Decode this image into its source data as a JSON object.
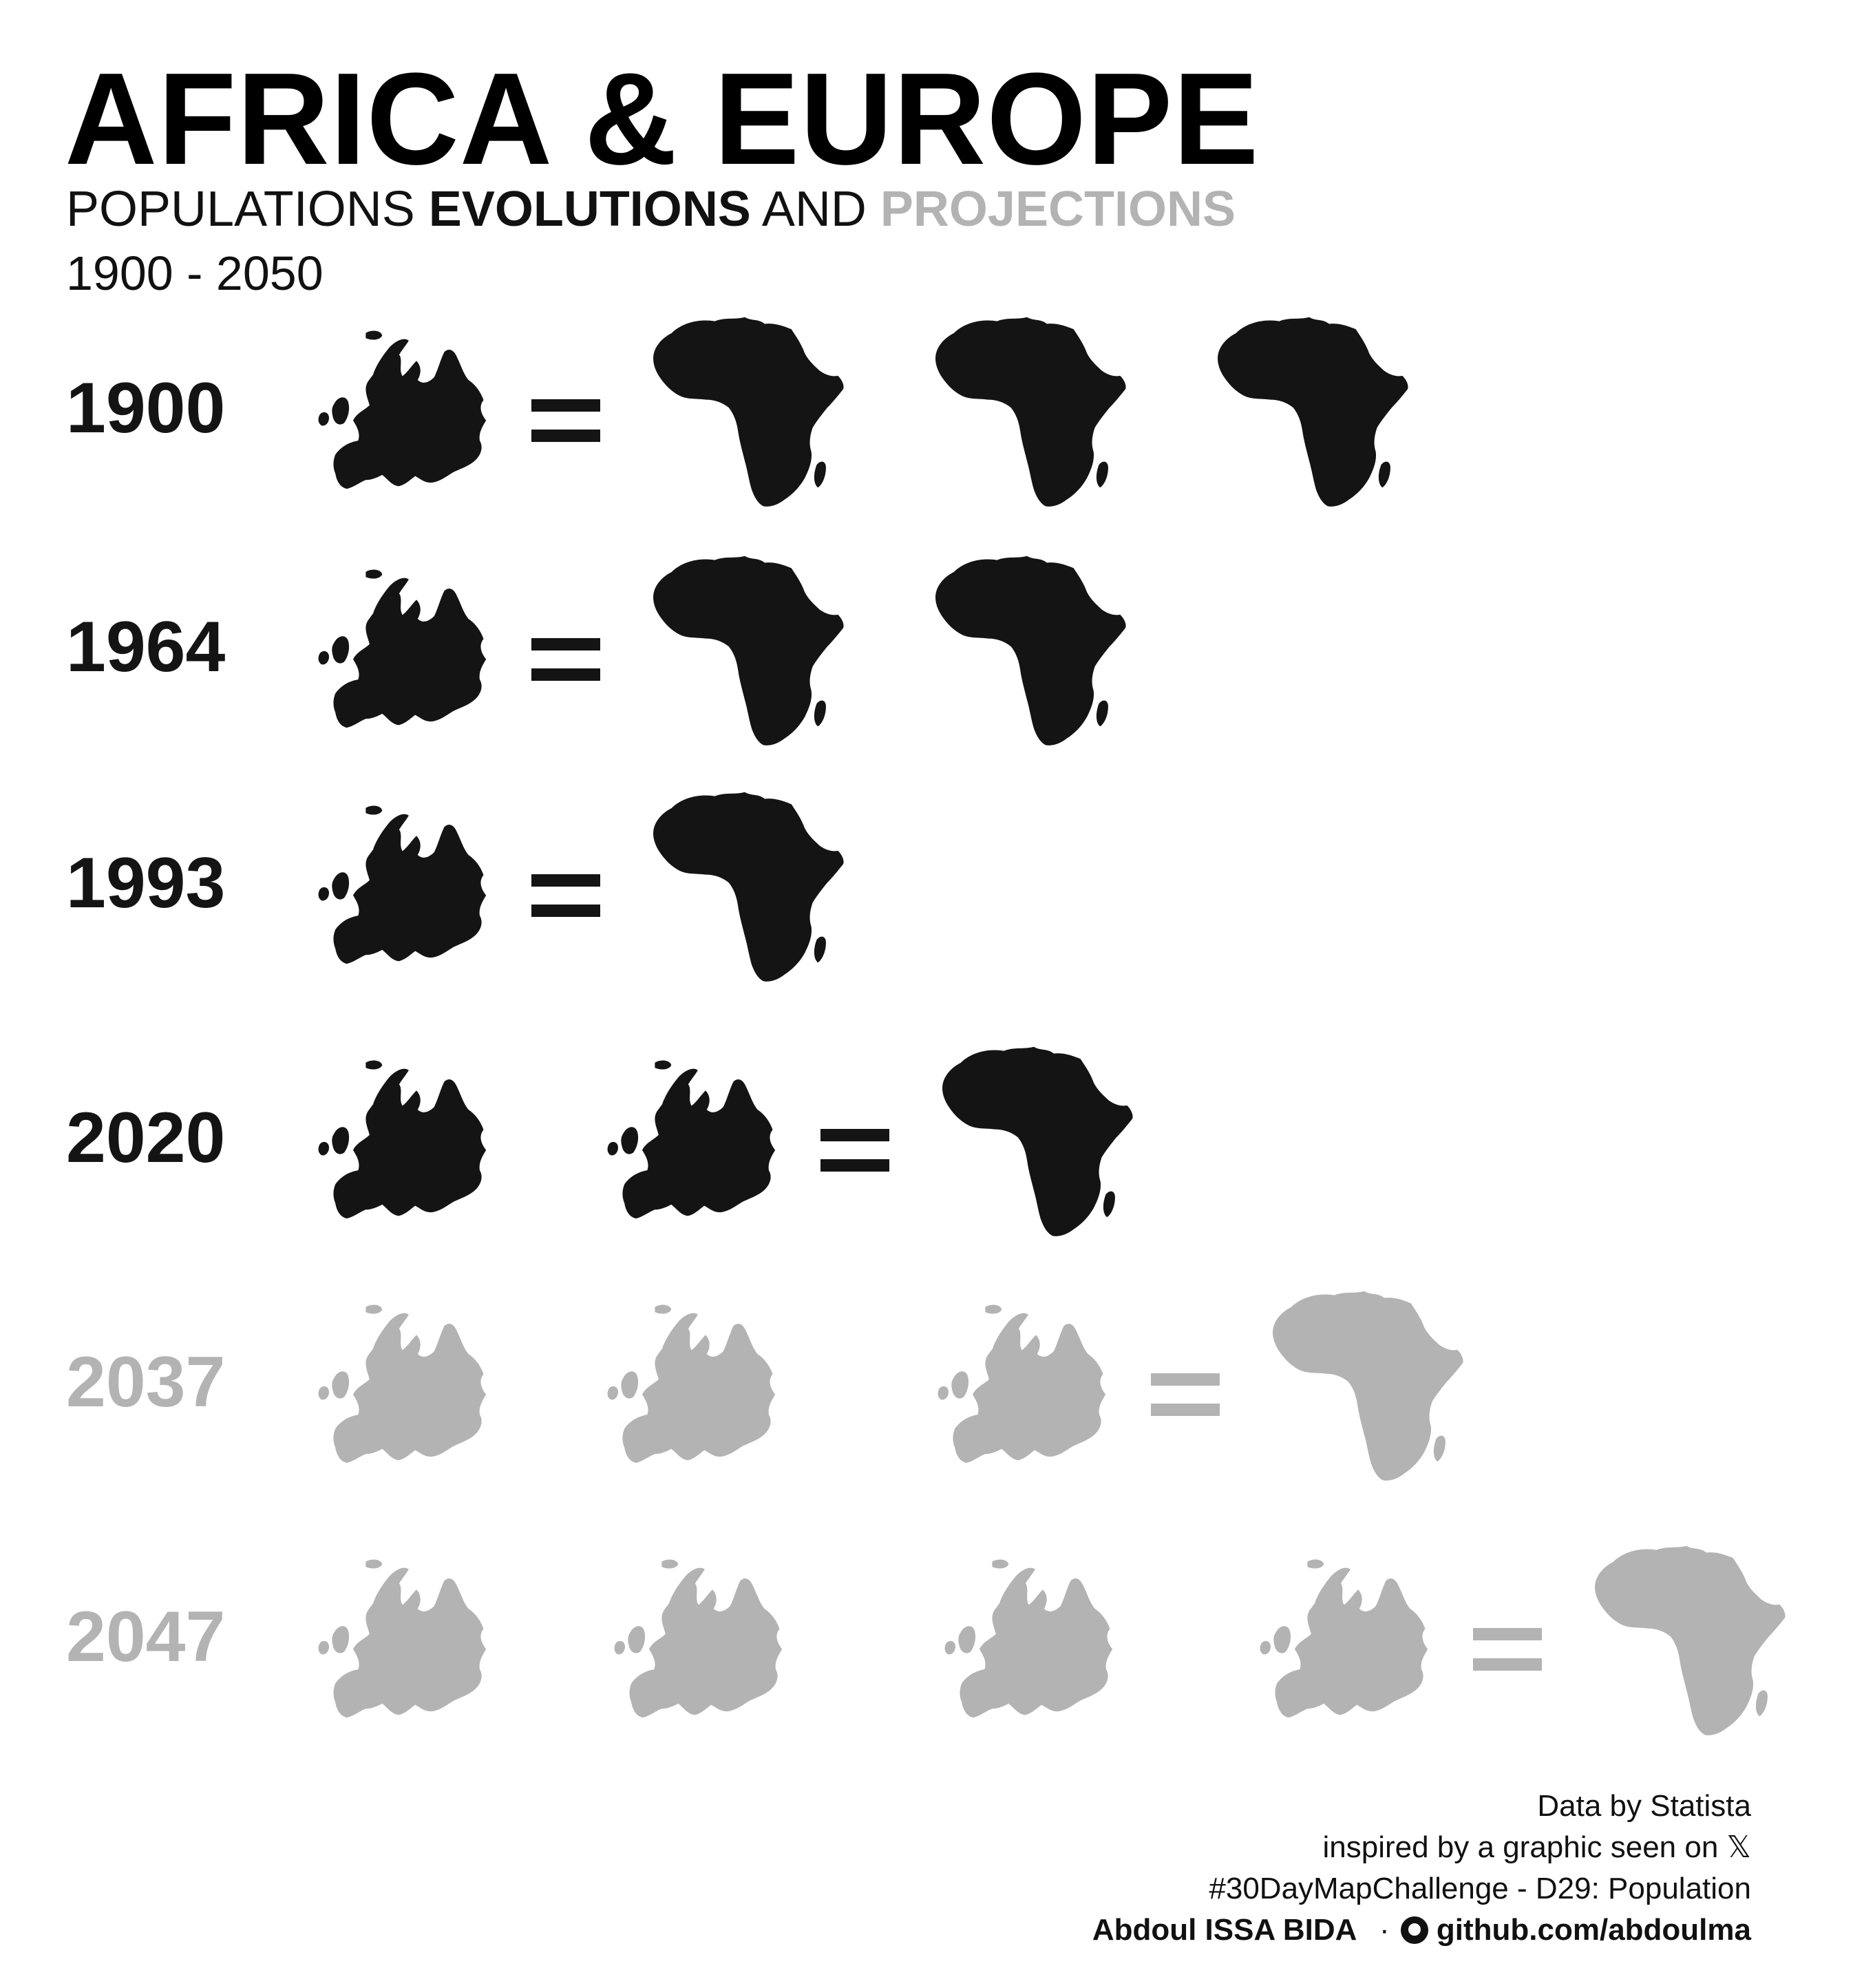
{
  "title": "AFRICA & EUROPE",
  "subtitle": {
    "part1": "POPULATIONS",
    "part2": "EVOLUTIONS",
    "part3": "AND",
    "part4": "PROJECTIONS"
  },
  "range": "1900 - 2050",
  "colors": {
    "observed": "#141414",
    "projected": "#b3b3b3"
  },
  "equals_sign": "=",
  "rows": [
    {
      "year": "1900",
      "europe_count": 1,
      "africa_count": 3,
      "projected": false
    },
    {
      "year": "1964",
      "europe_count": 1,
      "africa_count": 2,
      "projected": false
    },
    {
      "year": "1993",
      "europe_count": 1,
      "africa_count": 1,
      "projected": false
    },
    {
      "year": "2020",
      "europe_count": 2,
      "africa_count": 1,
      "projected": false
    },
    {
      "year": "2037",
      "europe_count": 3,
      "africa_count": 1,
      "projected": true
    },
    {
      "year": "2047",
      "europe_count": 4,
      "africa_count": 1,
      "projected": true
    }
  ],
  "footer": {
    "source": "Data by Statista",
    "inspired": "inspired by a graphic seen on 𝕏",
    "challenge": "#30DayMapChallenge - D29: Population",
    "author": "Abdoul ISSA BIDA",
    "separator": "·",
    "github_icon": "github-icon",
    "github": "github.com/abdoulma"
  }
}
